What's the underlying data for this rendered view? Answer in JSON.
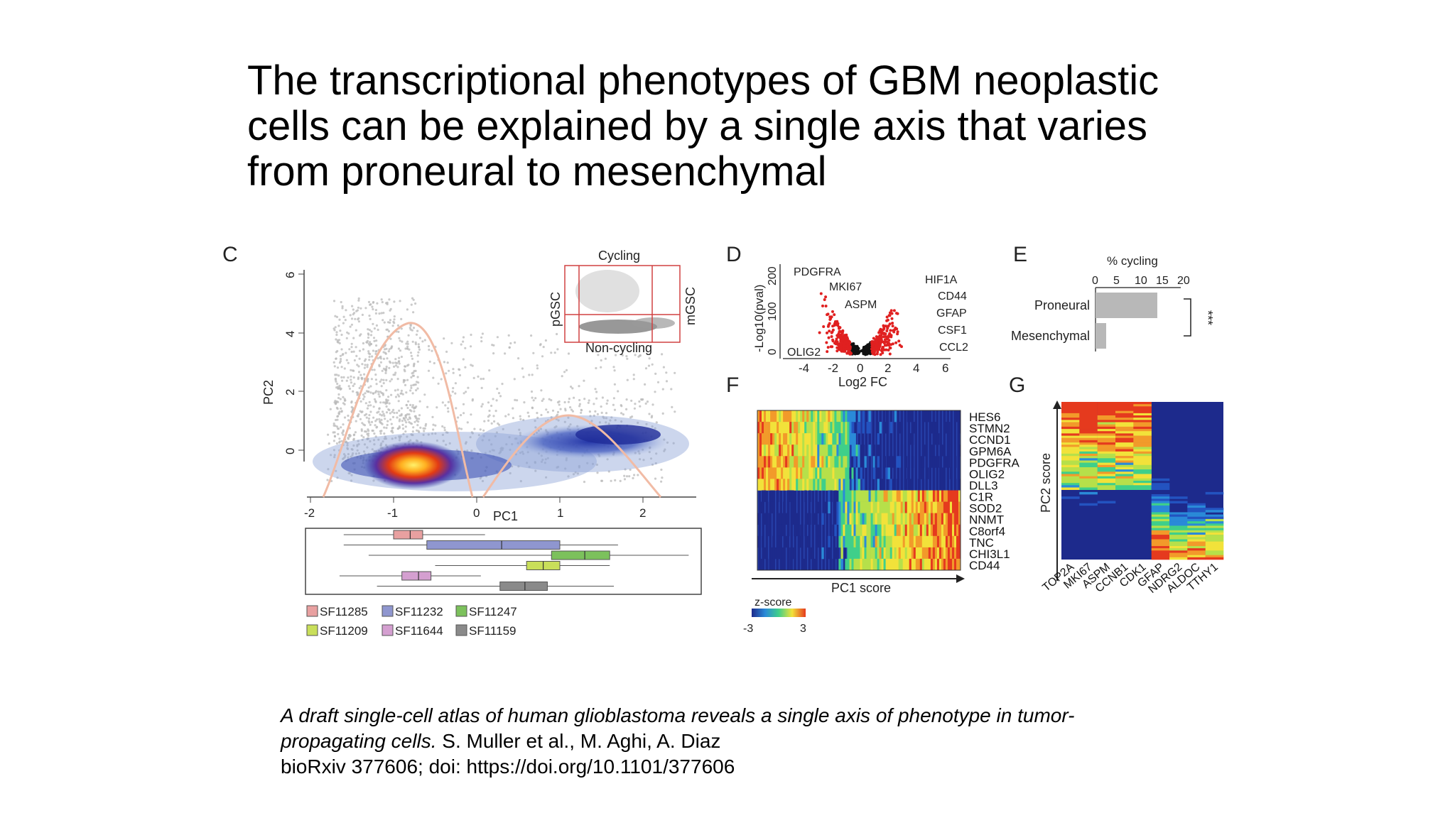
{
  "slide": {
    "title_lines": [
      "The transcriptional phenotypes of GBM neoplastic",
      "cells can be explained by a single axis that varies",
      "from proneural to mesenchymal"
    ]
  },
  "panels": {
    "C": {
      "letter": "C",
      "xlabel": "PC1",
      "ylabel": "PC2",
      "x_ticks": [
        "-2",
        "-1",
        "0",
        "1",
        "2"
      ],
      "y_ticks": [
        "0",
        "2",
        "4",
        "6"
      ],
      "inset": {
        "top": "Cycling",
        "bottom": "Non-cycling",
        "left": "pGSC",
        "right": "mGSC"
      },
      "boxplot": [
        {
          "sample": "SF11285",
          "color": "#e8a0a0",
          "min": -1.6,
          "q1": -1.0,
          "median": -0.8,
          "q3": -0.65,
          "max": 0.1
        },
        {
          "sample": "SF11232",
          "color": "#8f96cf",
          "min": -1.6,
          "q1": -0.6,
          "median": 0.3,
          "q3": 1.0,
          "max": 1.7
        },
        {
          "sample": "SF11247",
          "color": "#7cc15c",
          "min": -1.3,
          "q1": 0.9,
          "median": 1.3,
          "q3": 1.6,
          "max": 2.55
        },
        {
          "sample": "SF11209",
          "color": "#c9df5a",
          "min": -0.5,
          "q1": 0.6,
          "median": 0.8,
          "q3": 1.0,
          "max": 1.6
        },
        {
          "sample": "SF11644",
          "color": "#d49fd0",
          "min": -1.65,
          "q1": -0.9,
          "median": -0.7,
          "q3": -0.55,
          "max": 0.05
        },
        {
          "sample": "SF11159",
          "color": "#8a8a8a",
          "min": -1.2,
          "q1": 0.28,
          "median": 0.58,
          "q3": 0.85,
          "max": 1.65
        }
      ],
      "legend": [
        "SF11285",
        "SF11232",
        "SF11247",
        "SF11209",
        "SF11644",
        "SF11159"
      ]
    },
    "D": {
      "letter": "D",
      "xlabel": "Log2 FC",
      "ylabel": "-Log10(pval)",
      "x_ticks": [
        "-4",
        "-2",
        "0",
        "2",
        "4",
        "6"
      ],
      "y_ticks": [
        "0",
        "100",
        "200"
      ],
      "genes_left": [
        "PDGFRA",
        "MKI67",
        "ASPM",
        "OLIG2"
      ],
      "genes_right": [
        "HIF1A",
        "CD44",
        "GFAP",
        "CSF1",
        "CCL2"
      ]
    },
    "E": {
      "letter": "E",
      "title": "% cycling",
      "x_ticks": [
        "0",
        "5",
        "10",
        "15",
        "20"
      ],
      "significance": "***",
      "chart_data": {
        "type": "bar",
        "categories": [
          "Proneural",
          "Mesenchymal"
        ],
        "values": [
          14.5,
          2.5
        ],
        "title": "% cycling",
        "xlim": [
          0,
          20
        ]
      }
    },
    "F": {
      "letter": "F",
      "xlabel": "PC1 score",
      "genes": [
        "HES6",
        "STMN2",
        "CCND1",
        "GPM6A",
        "PDGFRA",
        "OLIG2",
        "DLL3",
        "C1R",
        "SOD2",
        "NNMT",
        "C8orf4",
        "TNC",
        "CHI3L1",
        "CD44"
      ],
      "zscore": {
        "label": "z-score",
        "min": "-3",
        "max": "3"
      }
    },
    "G": {
      "letter": "G",
      "ylabel": "PC2 score",
      "genes": [
        "TOP2A",
        "MKI67",
        "ASPM",
        "CCNB1",
        "CDK1",
        "GFAP",
        "NDRG2",
        "ALDOC",
        "TTHY1"
      ]
    }
  },
  "colors": {
    "red": "#e02020",
    "heat_low": "#1d2a8c",
    "heat_high": "#e53a1e",
    "kde": "#f1bba5",
    "grey_points": "#b9b9b9"
  },
  "citation": {
    "title_line1": "A draft single-cell atlas of human glioblastoma reveals a single axis of phenotype in tumor-",
    "title_line2": "propagating cells.",
    "authors": " S. Muller et al., M. Aghi, A. Diaz",
    "doi_line": "bioRxiv 377606; doi: https://doi.org/10.1101/377606"
  }
}
